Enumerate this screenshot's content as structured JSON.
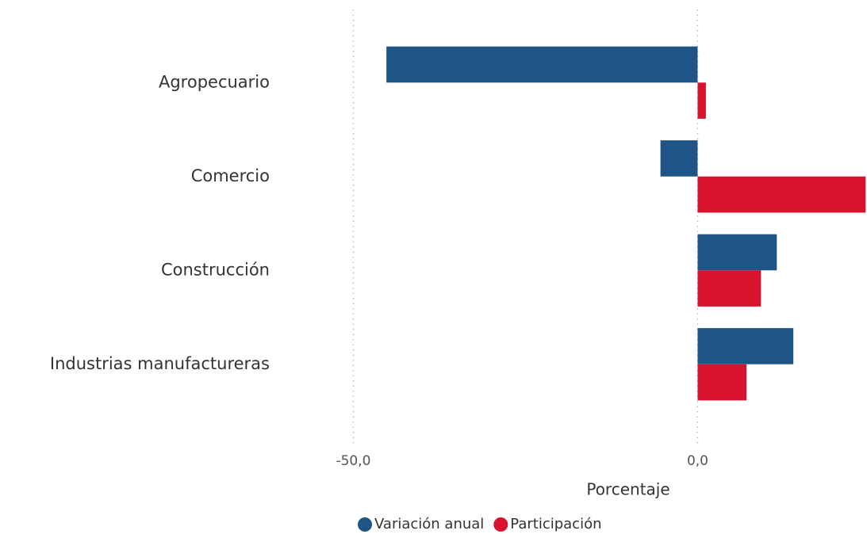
{
  "chart_data": {
    "type": "hbar",
    "x_label": "Porcentaje",
    "categories": [
      "Agropecuario",
      "Comercio",
      "Construcción",
      "Industrias manufactureras"
    ],
    "series": [
      {
        "name": "Variación anual",
        "color": "#1f5586",
        "values": [
          -45.2,
          -5.4,
          11.5,
          13.9
        ]
      },
      {
        "name": "Participación",
        "color": "#d7132e",
        "values": [
          1.2,
          24.4,
          9.2,
          7.1
        ]
      }
    ],
    "xlim": [
      -61,
      24.6
    ],
    "xticks": [
      {
        "value": -50,
        "label": "-50,0"
      },
      {
        "value": 0,
        "label": "0,0"
      }
    ],
    "grid": true,
    "legend": "bottom"
  }
}
